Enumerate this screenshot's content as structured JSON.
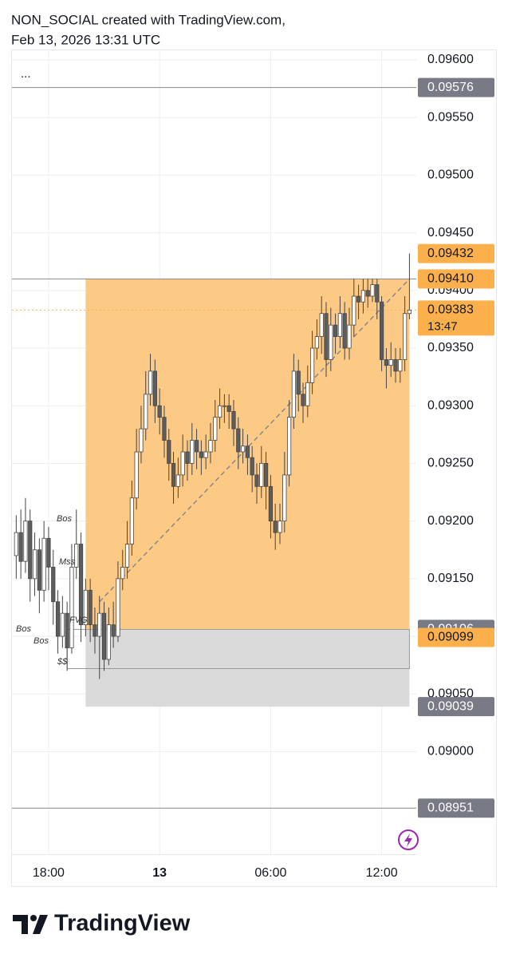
{
  "header": {
    "line1": "NON_SOCIAL created with TradingView.com,",
    "line2": "Feb 13, 2026 13:31 UTC",
    "menu": "..."
  },
  "footer": {
    "logo": "TradingView"
  },
  "chart_data": {
    "type": "candlestick",
    "x": [
      16.25,
      16.5,
      16.75,
      17,
      17.25,
      17.5,
      17.75,
      18,
      18.25,
      18.5,
      18.75,
      19,
      19.25,
      19.5,
      19.75,
      20,
      20.25,
      20.5,
      20.75,
      21,
      21.25,
      21.5,
      21.75,
      22,
      22.25,
      22.5,
      22.75,
      23,
      23.25,
      23.5,
      23.75,
      24,
      24.25,
      24.5,
      24.75,
      25,
      25.25,
      25.5,
      25.75,
      26,
      26.25,
      26.5,
      26.75,
      27,
      27.25,
      27.5,
      27.75,
      28,
      28.25,
      28.5,
      28.75,
      29,
      29.25,
      29.5,
      29.75,
      30,
      30.25,
      30.5,
      30.75,
      31,
      31.25,
      31.5,
      31.75,
      32,
      32.25,
      32.5,
      32.75,
      33,
      33.25,
      33.5,
      33.75,
      34,
      34.25,
      34.5,
      34.75,
      35,
      35.25,
      35.5,
      35.75,
      36,
      36.25,
      36.5,
      36.75,
      37,
      37.25,
      37.5
    ],
    "open": [
      0.0917,
      0.0919,
      0.09165,
      0.092,
      0.0915,
      0.09175,
      0.0914,
      0.09185,
      0.0916,
      0.0913,
      0.091,
      0.0912,
      0.0909,
      0.0916,
      0.0918,
      0.0911,
      0.0914,
      0.0911,
      0.091,
      0.0912,
      0.0908,
      0.0911,
      0.091,
      0.0915,
      0.0916,
      0.0918,
      0.0922,
      0.0926,
      0.0928,
      0.0931,
      0.0933,
      0.093,
      0.0929,
      0.0927,
      0.0925,
      0.0923,
      0.0924,
      0.0926,
      0.0925,
      0.0927,
      0.0926,
      0.09255,
      0.0926,
      0.0927,
      0.0929,
      0.093,
      0.093,
      0.09295,
      0.0928,
      0.0926,
      0.09265,
      0.09255,
      0.0924,
      0.0923,
      0.0925,
      0.0923,
      0.092,
      0.0919,
      0.092,
      0.0924,
      0.0929,
      0.0933,
      0.0931,
      0.093,
      0.0932,
      0.0935,
      0.0936,
      0.0938,
      0.0934,
      0.0937,
      0.0936,
      0.0938,
      0.0935,
      0.0937,
      0.09395,
      0.0939,
      0.094,
      0.09395,
      0.09405,
      0.0939,
      0.0934,
      0.09335,
      0.0934,
      0.0933,
      0.0934,
      0.0938
    ],
    "high": [
      0.09205,
      0.0921,
      0.0922,
      0.0921,
      0.0919,
      0.09185,
      0.092,
      0.09195,
      0.09175,
      0.0914,
      0.09135,
      0.0913,
      0.0918,
      0.0921,
      0.0919,
      0.0915,
      0.0915,
      0.09125,
      0.09135,
      0.0913,
      0.09125,
      0.0913,
      0.09165,
      0.09175,
      0.092,
      0.09235,
      0.0928,
      0.093,
      0.0933,
      0.09345,
      0.0934,
      0.09315,
      0.093,
      0.0928,
      0.0926,
      0.09255,
      0.09275,
      0.0927,
      0.09285,
      0.0928,
      0.0927,
      0.09275,
      0.09285,
      0.09305,
      0.09315,
      0.0931,
      0.0931,
      0.09305,
      0.0929,
      0.0928,
      0.09275,
      0.09265,
      0.0925,
      0.09265,
      0.0926,
      0.0924,
      0.09215,
      0.09215,
      0.0926,
      0.09305,
      0.09345,
      0.0934,
      0.0932,
      0.09335,
      0.09365,
      0.09375,
      0.09395,
      0.0939,
      0.09385,
      0.0938,
      0.09395,
      0.0939,
      0.09385,
      0.0941,
      0.09405,
      0.0941,
      0.0941,
      0.0941,
      0.0941,
      0.09395,
      0.0935,
      0.09355,
      0.0935,
      0.0935,
      0.09395,
      0.09432
    ],
    "low": [
      0.0915,
      0.0915,
      0.09155,
      0.0913,
      0.09135,
      0.0912,
      0.0913,
      0.0914,
      0.0911,
      0.09085,
      0.0909,
      0.0907,
      0.09085,
      0.0915,
      0.09095,
      0.091,
      0.09095,
      0.09085,
      0.09063,
      0.0907,
      0.09075,
      0.0909,
      0.09095,
      0.0914,
      0.0915,
      0.0917,
      0.0921,
      0.0925,
      0.0927,
      0.093,
      0.09285,
      0.09275,
      0.09255,
      0.09235,
      0.09215,
      0.0922,
      0.0923,
      0.09235,
      0.0924,
      0.09245,
      0.0924,
      0.09245,
      0.0925,
      0.0926,
      0.0928,
      0.09285,
      0.0928,
      0.09265,
      0.09245,
      0.0925,
      0.0924,
      0.09225,
      0.09215,
      0.0922,
      0.0921,
      0.09185,
      0.09175,
      0.0918,
      0.0919,
      0.0923,
      0.0928,
      0.09295,
      0.09285,
      0.0929,
      0.0931,
      0.0934,
      0.09345,
      0.09325,
      0.0933,
      0.09345,
      0.0935,
      0.0934,
      0.0934,
      0.0936,
      0.09375,
      0.0938,
      0.09385,
      0.0939,
      0.09375,
      0.0933,
      0.09315,
      0.09325,
      0.0932,
      0.0932,
      0.0933,
      0.09375
    ],
    "close": [
      0.0919,
      0.09165,
      0.092,
      0.0915,
      0.09175,
      0.0914,
      0.09185,
      0.0916,
      0.0913,
      0.091,
      0.0912,
      0.0909,
      0.0916,
      0.0918,
      0.0911,
      0.0914,
      0.0911,
      0.091,
      0.0912,
      0.0908,
      0.0911,
      0.091,
      0.0915,
      0.0916,
      0.0918,
      0.0922,
      0.0926,
      0.0928,
      0.0931,
      0.0933,
      0.093,
      0.0929,
      0.0927,
      0.0925,
      0.0923,
      0.0924,
      0.0926,
      0.0925,
      0.0927,
      0.0926,
      0.09255,
      0.0926,
      0.0927,
      0.0929,
      0.093,
      0.093,
      0.09295,
      0.0928,
      0.0926,
      0.09265,
      0.09255,
      0.0924,
      0.0923,
      0.0925,
      0.0923,
      0.092,
      0.0919,
      0.092,
      0.0924,
      0.0929,
      0.0933,
      0.0931,
      0.093,
      0.0932,
      0.0935,
      0.0936,
      0.0938,
      0.0934,
      0.0937,
      0.0936,
      0.0938,
      0.0935,
      0.0937,
      0.09395,
      0.0939,
      0.094,
      0.09395,
      0.09405,
      0.0939,
      0.0934,
      0.09335,
      0.0934,
      0.0933,
      0.0934,
      0.0938,
      0.09383
    ],
    "up_color": "#ffffff",
    "down_color": "#5d5d5d",
    "wick_color": "#444444",
    "xlim": [
      16.02,
      37.87
    ],
    "xticks": [
      {
        "value": 18,
        "label": "18:00"
      },
      {
        "value": 24,
        "label": "13"
      },
      {
        "value": 30,
        "label": "06:00"
      },
      {
        "value": 36,
        "label": "12:00"
      }
    ],
    "ylim": [
      0.08911,
      0.09609
    ],
    "yticks": [
      {
        "value": 0.096,
        "label": "0.09600"
      },
      {
        "value": 0.0955,
        "label": "0.09550"
      },
      {
        "value": 0.095,
        "label": "0.09500"
      },
      {
        "value": 0.0945,
        "label": "0.09450"
      },
      {
        "value": 0.094,
        "label": "0.09400"
      },
      {
        "value": 0.0935,
        "label": "0.09350"
      },
      {
        "value": 0.093,
        "label": "0.09300"
      },
      {
        "value": 0.0925,
        "label": "0.09250"
      },
      {
        "value": 0.092,
        "label": "0.09200"
      },
      {
        "value": 0.0915,
        "label": "0.09150"
      },
      {
        "value": 0.091,
        "label": "0.09100"
      },
      {
        "value": 0.0905,
        "label": "0.09050"
      },
      {
        "value": 0.09,
        "label": "0.09000"
      }
    ],
    "grid": true,
    "zones": [
      {
        "from": 0.09106,
        "to": 0.0941,
        "start": 20,
        "end": 37.5,
        "color": "#fdca86"
      },
      {
        "from": 0.09039,
        "to": 0.09106,
        "start": 20,
        "end": 37.5,
        "color": "#dadada"
      },
      {
        "from": 0.09072,
        "to": 0.09106,
        "start": 19,
        "end": 37.5,
        "outline": "#999999"
      }
    ],
    "trend": {
      "from": [
        20.75,
        0.0913
      ],
      "to": [
        37.5,
        0.0941
      ],
      "color": "#888888"
    },
    "levels": [
      {
        "value": 0.09576,
        "label": "0.09576",
        "color": "#787b86",
        "line": "solid"
      },
      {
        "value": 0.09432,
        "label": "0.09432",
        "color": "#fbb04c"
      },
      {
        "value": 0.0941,
        "label": "0.09410",
        "color": "#fbb04c",
        "line": "solid"
      },
      {
        "value": 0.09383,
        "label": "0.09383",
        "color": "#fbb04c",
        "line": "dotted",
        "countdown": "13:47"
      },
      {
        "value": 0.09106,
        "label": "0.09106",
        "color": "#787b86"
      },
      {
        "value": 0.09099,
        "label": "0.09099",
        "color": "#fbb04c"
      },
      {
        "value": 0.09039,
        "label": "0.09039",
        "color": "#787b86"
      },
      {
        "value": 0.08951,
        "label": "0.08951",
        "color": "#787b86",
        "line": "solid"
      }
    ],
    "annotations": [
      "Bos",
      "Mss",
      "FVG",
      "Bos",
      "Bos",
      "$$"
    ]
  }
}
